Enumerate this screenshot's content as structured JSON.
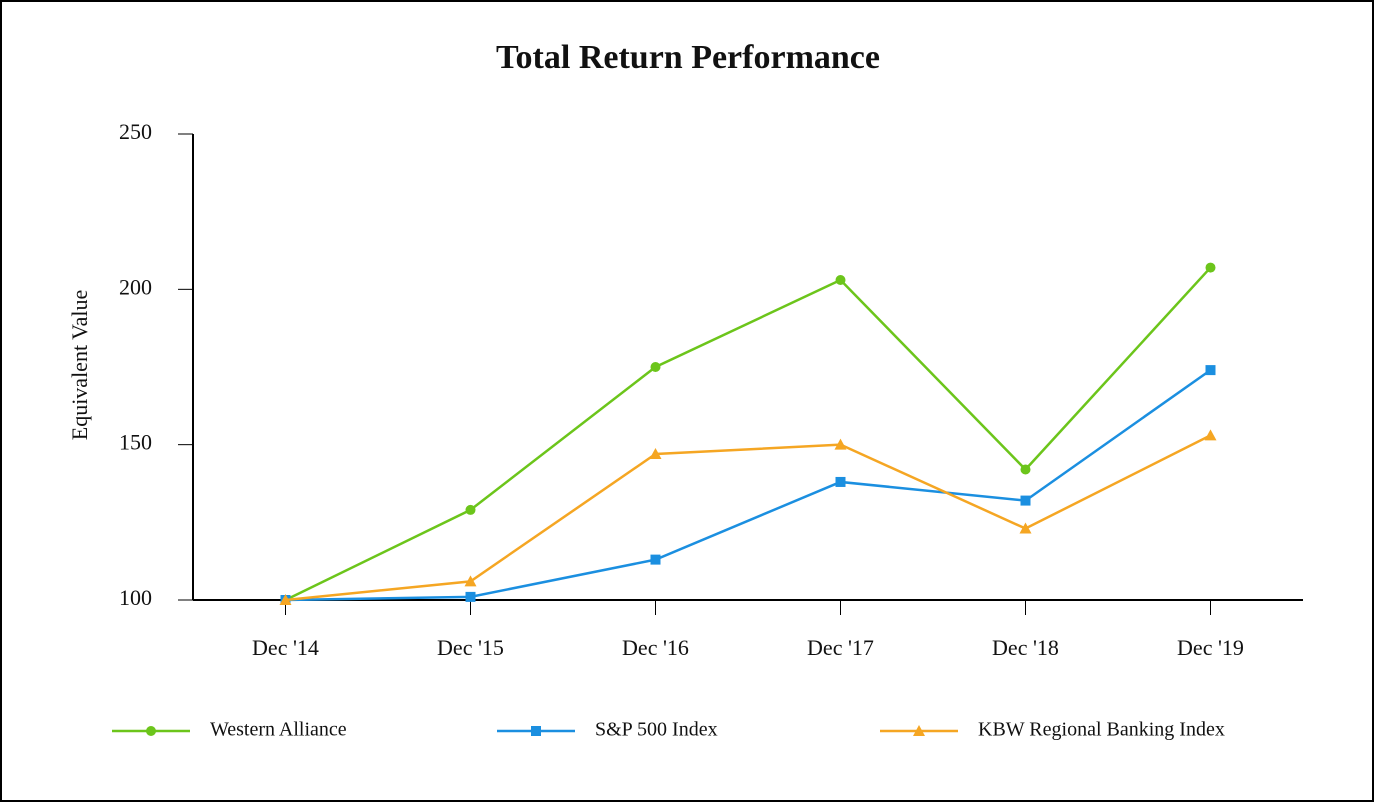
{
  "chart_data": {
    "type": "line",
    "title": "Total Return Performance",
    "y_label": "Equivalent Value",
    "categories": [
      "Dec '14",
      "Dec '15",
      "Dec '16",
      "Dec '17",
      "Dec '18",
      "Dec '19"
    ],
    "series": [
      {
        "name": "Western Alliance",
        "color": "#6cc51b",
        "marker": "circle",
        "values": [
          100,
          129,
          175,
          203,
          142,
          207
        ]
      },
      {
        "name": "S&P 500 Index",
        "color": "#1b8fe0",
        "marker": "square",
        "values": [
          100,
          101,
          113,
          138,
          132,
          174
        ]
      },
      {
        "name": "KBW Regional Banking Index",
        "color": "#f5a623",
        "marker": "triangle",
        "values": [
          100,
          106,
          147,
          150,
          123,
          153
        ]
      }
    ],
    "ylim": [
      100,
      250
    ],
    "yticks": [
      100,
      150,
      200,
      250
    ],
    "grid": false
  }
}
